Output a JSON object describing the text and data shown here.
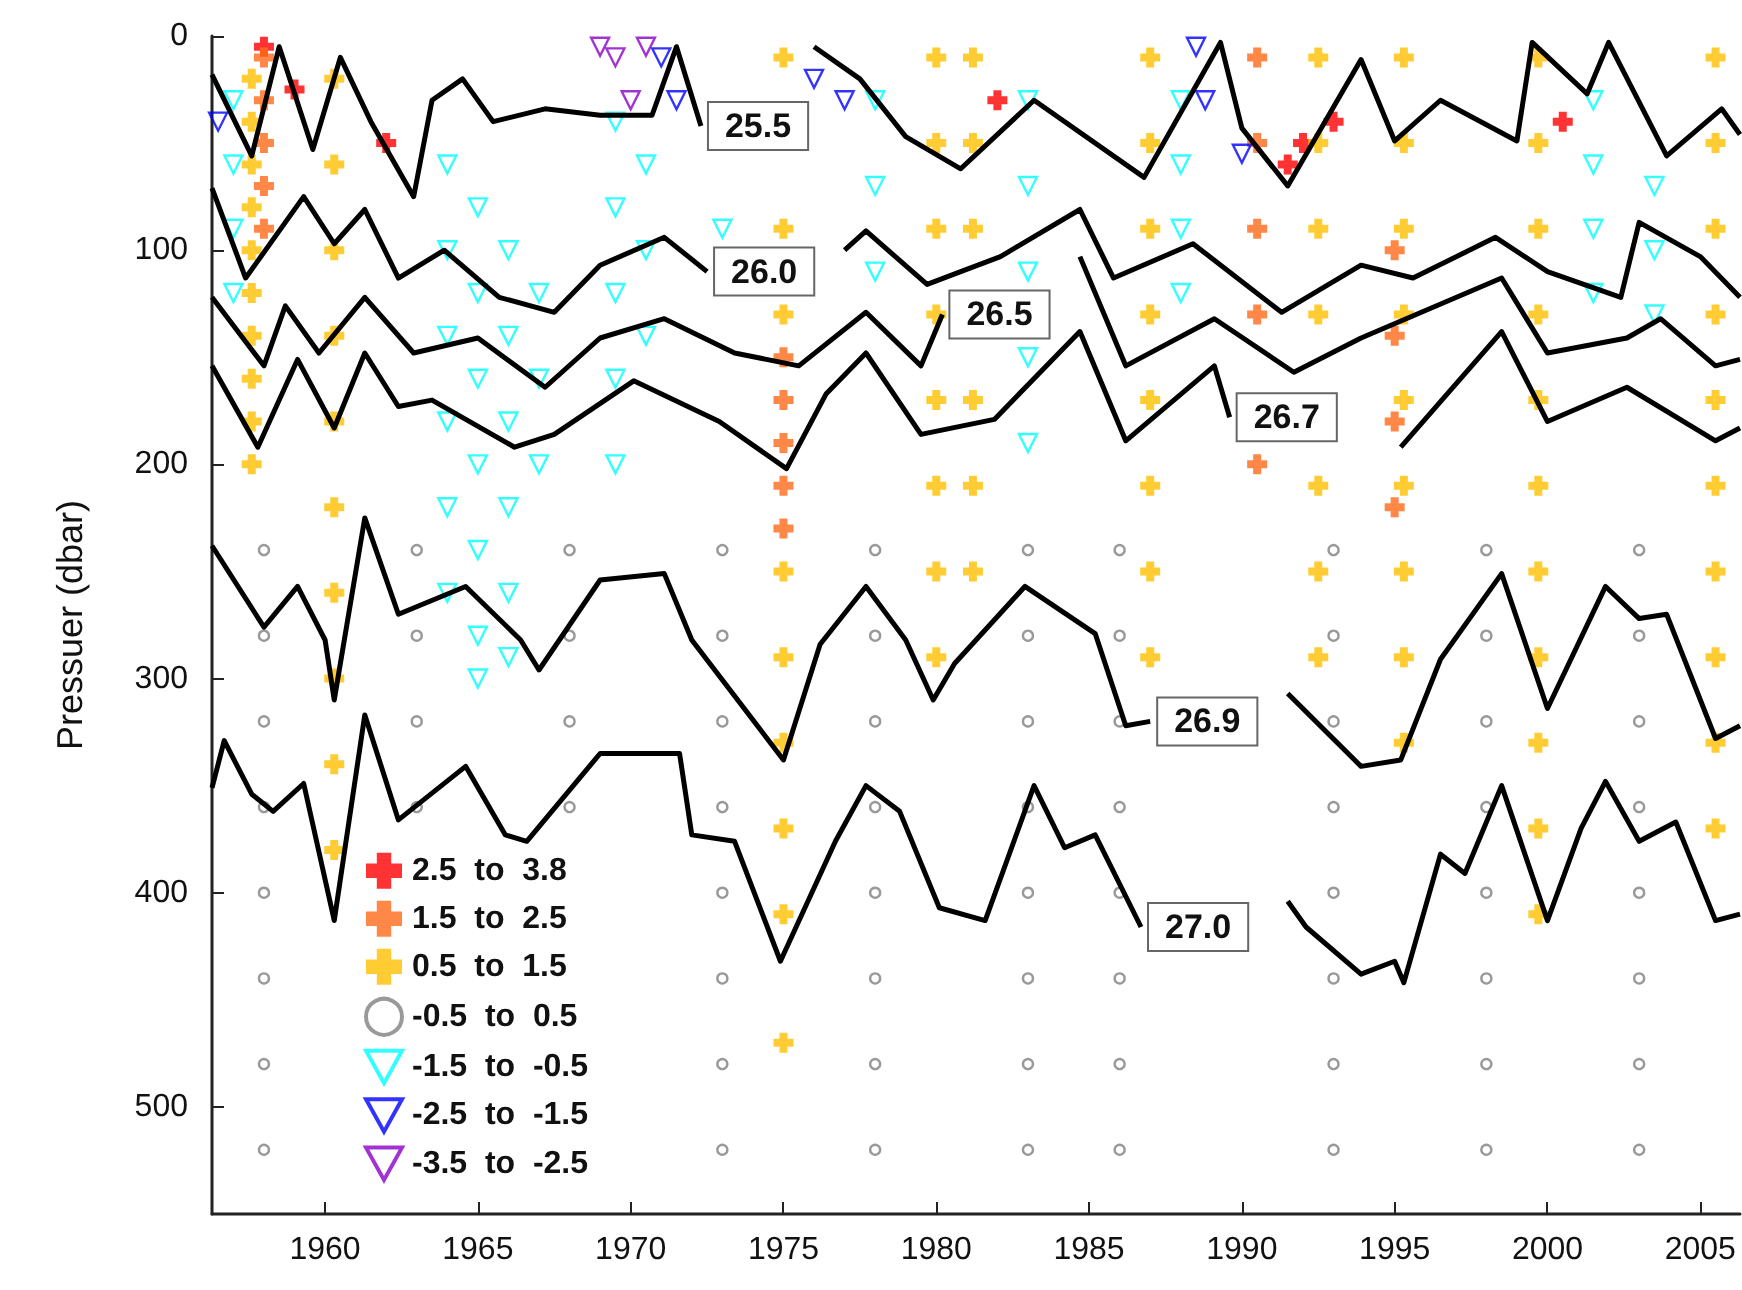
{
  "chart_data": {
    "type": "scatter",
    "ylabel": "Pressuer (dbar)",
    "xlim": [
      1956.3,
      2006.3
    ],
    "xticks": [
      1960,
      1965,
      1970,
      1975,
      1980,
      1985,
      1990,
      1995,
      2000,
      2005
    ],
    "ylim": [
      550,
      0
    ],
    "yticks": [
      0,
      100,
      200,
      300,
      400,
      500
    ],
    "grid": false,
    "legend": "bottom left",
    "annotations": [
      {
        "text": "25.5",
        "x": 1972.3,
        "y": 42
      },
      {
        "text": "26.0",
        "x": 1972.5,
        "y": 110
      },
      {
        "text": "26.5",
        "x": 1980.2,
        "y": 130
      },
      {
        "text": "26.7",
        "x": 1989.6,
        "y": 178
      },
      {
        "text": "26.9",
        "x": 1987,
        "y": 320
      },
      {
        "text": "27.0",
        "x": 1986.7,
        "y": 416
      }
    ],
    "series": [
      {
        "name": "2.5  to  3.8",
        "color": "#ff0000",
        "marker": "cross",
        "x": [
          1958,
          1959,
          1962,
          1982,
          1991.5,
          1992,
          1993,
          2000.5
        ],
        "values": [
          5,
          25,
          50,
          30,
          60,
          50,
          40,
          40
        ]
      },
      {
        "name": "1.5  to  2.5",
        "color": "#ff6a1a",
        "marker": "cross",
        "x": [
          1958,
          1958,
          1958,
          1958,
          1958,
          1975,
          1975,
          1975,
          1975,
          1975,
          1990.5,
          1990.5,
          1990.5,
          1990.5,
          1990.5,
          1995,
          1995,
          1995,
          1995
        ],
        "values": [
          10,
          30,
          50,
          70,
          90,
          150,
          170,
          190,
          210,
          230,
          10,
          50,
          90,
          130,
          200,
          100,
          140,
          180,
          220
        ]
      },
      {
        "name": "0.5  to  1.5",
        "color": "#ffc000",
        "marker": "cross",
        "x": [
          1957.6,
          1957.6,
          1957.6,
          1957.6,
          1957.6,
          1957.6,
          1957.6,
          1957.6,
          1957.6,
          1957.6,
          1960.3,
          1960.3,
          1960.3,
          1960.3,
          1960.3,
          1960.3,
          1960.3,
          1960.3,
          1960.3,
          1960.3,
          1975,
          1975,
          1975,
          1975,
          1975,
          1975,
          1975,
          1975,
          1975,
          1980,
          1980,
          1980,
          1980,
          1980,
          1980,
          1980,
          1980,
          1981.2,
          1981.2,
          1981.2,
          1981.2,
          1981.2,
          1981.2,
          1987,
          1987,
          1987,
          1987,
          1987,
          1987,
          1987,
          1987,
          1992.5,
          1992.5,
          1992.5,
          1992.5,
          1992.5,
          1992.5,
          1992.5,
          1995.3,
          1995.3,
          1995.3,
          1995.3,
          1995.3,
          1995.3,
          1995.3,
          1995.3,
          1995.3,
          1999.7,
          1999.7,
          1999.7,
          1999.7,
          1999.7,
          1999.7,
          1999.7,
          1999.7,
          1999.7,
          1999.7,
          1999.7,
          2005.5,
          2005.5,
          2005.5,
          2005.5,
          2005.5,
          2005.5,
          2005.5,
          2005.5,
          2005.5,
          2005.5
        ],
        "values": [
          20,
          40,
          60,
          80,
          100,
          120,
          140,
          160,
          180,
          200,
          20,
          60,
          100,
          140,
          180,
          220,
          260,
          300,
          340,
          380,
          10,
          90,
          130,
          250,
          290,
          330,
          370,
          410,
          470,
          10,
          50,
          90,
          130,
          170,
          210,
          250,
          290,
          10,
          50,
          90,
          170,
          210,
          250,
          10,
          50,
          90,
          130,
          170,
          210,
          250,
          290,
          10,
          50,
          90,
          130,
          210,
          250,
          290,
          10,
          50,
          90,
          130,
          170,
          210,
          250,
          290,
          330,
          10,
          50,
          90,
          130,
          170,
          210,
          250,
          290,
          330,
          370,
          410,
          10,
          50,
          90,
          130,
          170,
          210,
          250,
          290,
          330,
          370
        ]
      },
      {
        "name": "-0.5  to  0.5",
        "color": "#808080",
        "marker": "circle",
        "x": [
          1958,
          1958,
          1958,
          1958,
          1958,
          1958,
          1958,
          1958,
          1963,
          1963,
          1963,
          1963,
          1968,
          1968,
          1968,
          1968,
          1973,
          1973,
          1973,
          1973,
          1973,
          1973,
          1973,
          1973,
          1978,
          1978,
          1978,
          1978,
          1978,
          1978,
          1978,
          1978,
          1983,
          1983,
          1983,
          1983,
          1983,
          1983,
          1983,
          1983,
          1986,
          1986,
          1986,
          1986,
          1986,
          1986,
          1986,
          1986,
          1993,
          1993,
          1993,
          1993,
          1993,
          1993,
          1993,
          1993,
          1998,
          1998,
          1998,
          1998,
          1998,
          1998,
          1998,
          1998,
          2003,
          2003,
          2003,
          2003,
          2003,
          2003,
          2003,
          2003
        ],
        "values": [
          240,
          280,
          320,
          360,
          400,
          440,
          480,
          520,
          240,
          280,
          320,
          360,
          240,
          280,
          320,
          360,
          240,
          280,
          320,
          360,
          400,
          440,
          480,
          520,
          240,
          280,
          320,
          360,
          400,
          440,
          480,
          520,
          240,
          280,
          320,
          360,
          400,
          440,
          480,
          520,
          240,
          280,
          320,
          360,
          400,
          440,
          480,
          520,
          240,
          280,
          320,
          360,
          400,
          440,
          480,
          520,
          240,
          280,
          320,
          360,
          400,
          440,
          480,
          520,
          240,
          280,
          320,
          360,
          400,
          440,
          480,
          520
        ]
      },
      {
        "name": "-1.5  to  -0.5",
        "color": "#00ffff",
        "marker": "triangle",
        "x": [
          1957,
          1957,
          1957,
          1957,
          1964,
          1964,
          1964,
          1964,
          1964,
          1964,
          1965,
          1965,
          1965,
          1965,
          1965,
          1965,
          1965,
          1966,
          1966,
          1966,
          1966,
          1966,
          1966,
          1967,
          1967,
          1967,
          1969.5,
          1969.5,
          1969.5,
          1969.5,
          1969.5,
          1970.5,
          1970.5,
          1970.5,
          1973,
          1978,
          1978,
          1978,
          1983,
          1983,
          1983,
          1983,
          1983,
          1988,
          1988,
          1988,
          1988,
          2001.5,
          2001.5,
          2001.5,
          2001.5,
          2003.5,
          2003.5,
          2003.5
        ],
        "values": [
          30,
          60,
          90,
          120,
          60,
          100,
          140,
          180,
          220,
          260,
          80,
          120,
          160,
          200,
          240,
          280,
          300,
          100,
          140,
          180,
          220,
          260,
          290,
          120,
          160,
          200,
          40,
          80,
          120,
          160,
          200,
          60,
          100,
          140,
          90,
          30,
          70,
          110,
          30,
          70,
          110,
          150,
          190,
          30,
          60,
          90,
          120,
          30,
          60,
          90,
          120,
          70,
          100,
          130
        ]
      },
      {
        "name": "-2.5  to  -1.5",
        "color": "#0000ff",
        "marker": "triangle",
        "x": [
          1956.5,
          1971,
          1971.5,
          1976,
          1977,
          1988.5,
          1988.8,
          1990
        ],
        "values": [
          40,
          10,
          30,
          20,
          30,
          5,
          30,
          55
        ]
      },
      {
        "name": "-3.5  to  -2.5",
        "color": "#8b00c8",
        "marker": "triangle",
        "x": [
          1969,
          1969.5,
          1970,
          1970.5
        ],
        "values": [
          5,
          10,
          30,
          5
        ]
      },
      {
        "type": "line",
        "color": "#000000",
        "marker": "none",
        "x": [
          1956.3,
          1957.6,
          1958.5,
          1959.6,
          1960.5,
          1961.5,
          1962.9,
          1963.5,
          1964.5,
          1965.5,
          1967.2,
          1969,
          1970.7,
          1971.5,
          1972.3,
          1974.4,
          1976,
          1977.5,
          1979,
          1980.8,
          1983.2,
          1986.8,
          1989.3,
          1990,
          1991.5,
          1993.9,
          1995,
          1996.5,
          1999,
          1999.5,
          2001.3,
          2002,
          2003.9,
          2005.7,
          2006.3
        ],
        "values": [
          18,
          56,
          5,
          53,
          10,
          40,
          75,
          30,
          20,
          40,
          34,
          37,
          37,
          5,
          42,
          null,
          5,
          20,
          47,
          62,
          30,
          66,
          3,
          43,
          70,
          11,
          49,
          30,
          49,
          3,
          27,
          3,
          56,
          34,
          46
        ]
      },
      {
        "type": "line",
        "color": "#000000",
        "marker": "none",
        "x": [
          1956.3,
          1957.4,
          1959.3,
          1960.3,
          1961.3,
          1962.4,
          1963.9,
          1965.7,
          1967.5,
          1969,
          1971.1,
          1972.5,
          1974.6,
          1977,
          1977.7,
          1979.7,
          1980.8,
          1982.1,
          1984.7,
          1985.8,
          1988.4,
          1991.3,
          1993.9,
          1995.6,
          1998.3,
          2000,
          2002.4,
          2003,
          2005,
          2006.3
        ],
        "values": [
          71,
          113,
          75,
          97,
          81,
          113,
          100,
          122,
          129,
          107,
          94,
          110,
          null,
          100,
          91,
          116,
          110,
          103,
          81,
          113,
          97,
          129,
          107,
          113,
          94,
          110,
          122,
          87,
          103,
          122
        ]
      },
      {
        "type": "line",
        "color": "#000000",
        "marker": "none",
        "x": [
          1956.3,
          1958,
          1958.7,
          1959.8,
          1961.3,
          1962.9,
          1965,
          1967.2,
          1969,
          1971.1,
          1973.4,
          1975.5,
          1977.7,
          1979.5,
          1980.2,
          1982,
          1984.7,
          1986.2,
          1989.1,
          1991.7,
          1993.9,
          1998.5,
          2000,
          2002.6,
          2003.7,
          2005.5,
          2006.3
        ],
        "values": [
          122,
          154,
          126,
          148,
          122,
          148,
          141,
          164,
          141,
          132,
          148,
          154,
          129,
          154,
          130,
          null,
          103,
          154,
          132,
          157,
          141,
          113,
          148,
          141,
          132,
          154,
          151
        ]
      },
      {
        "type": "line",
        "color": "#000000",
        "marker": "none",
        "x": [
          1956.3,
          1957.8,
          1959.1,
          1960.3,
          1961.3,
          1962.4,
          1963.5,
          1966.2,
          1967.5,
          1970.1,
          1972.9,
          1975.1,
          1976.4,
          1977.7,
          1979.5,
          1981.9,
          1984.7,
          1986.2,
          1989.1,
          1989.6,
          1991.6,
          1995.2,
          1998.5,
          2000,
          2002.6,
          2005.5,
          2006.3
        ],
        "values": [
          154,
          192,
          151,
          183,
          148,
          173,
          170,
          192,
          186,
          161,
          180,
          202,
          167,
          148,
          186,
          179,
          138,
          189,
          154,
          178,
          null,
          192,
          138,
          180,
          164,
          189,
          183
        ]
      },
      {
        "type": "line",
        "color": "#000000",
        "marker": "none",
        "x": [
          1956.3,
          1958,
          1959.1,
          1960,
          1960.3,
          1961.3,
          1962.4,
          1964.6,
          1966.4,
          1967,
          1969,
          1971.1,
          1972,
          1975,
          1976.2,
          1977.7,
          1979,
          1979.9,
          1980.6,
          1982.9,
          1985.2,
          1986.2,
          1987,
          1988.5,
          1990.1,
          1991.5,
          1993.9,
          1995.2,
          1996.5,
          1998.5,
          2000,
          2001.9,
          2003,
          2003.9,
          2005.5,
          2006.3
        ],
        "values": [
          238,
          276,
          257,
          282,
          310,
          225,
          270,
          257,
          282,
          296,
          254,
          251,
          282,
          338,
          284,
          257,
          282,
          310,
          293,
          257,
          279,
          322,
          320,
          null,
          null,
          307,
          341,
          338,
          291,
          251,
          314,
          257,
          272,
          270,
          328,
          322
        ]
      },
      {
        "type": "line",
        "color": "#000000",
        "marker": "none",
        "x": [
          1956.3,
          1956.7,
          1957.6,
          1958.3,
          1959.3,
          1960.3,
          1961.3,
          1962.4,
          1964.6,
          1965.9,
          1966.6,
          1969,
          1971.6,
          1972,
          1973.4,
          1974.9,
          1976.7,
          1977.7,
          1978.8,
          1980.1,
          1981.6,
          1983.2,
          1984.2,
          1985.2,
          1986.7,
          1988.5,
          1990.4,
          1991.5,
          1992.1,
          1993.9,
          1995,
          1995.3,
          1996.5,
          1997.3,
          1998.5,
          2000,
          2001.1,
          2001.9,
          2003,
          2004.2,
          2005.5,
          2006.3
        ],
        "values": [
          351,
          329,
          354,
          362,
          349,
          413,
          317,
          366,
          341,
          373,
          376,
          335,
          335,
          373,
          376,
          432,
          376,
          350,
          362,
          407,
          413,
          350,
          379,
          373,
          416,
          null,
          null,
          404,
          416,
          438,
          432,
          442,
          382,
          391,
          350,
          413,
          370,
          348,
          376,
          367,
          413,
          410
        ]
      }
    ]
  }
}
